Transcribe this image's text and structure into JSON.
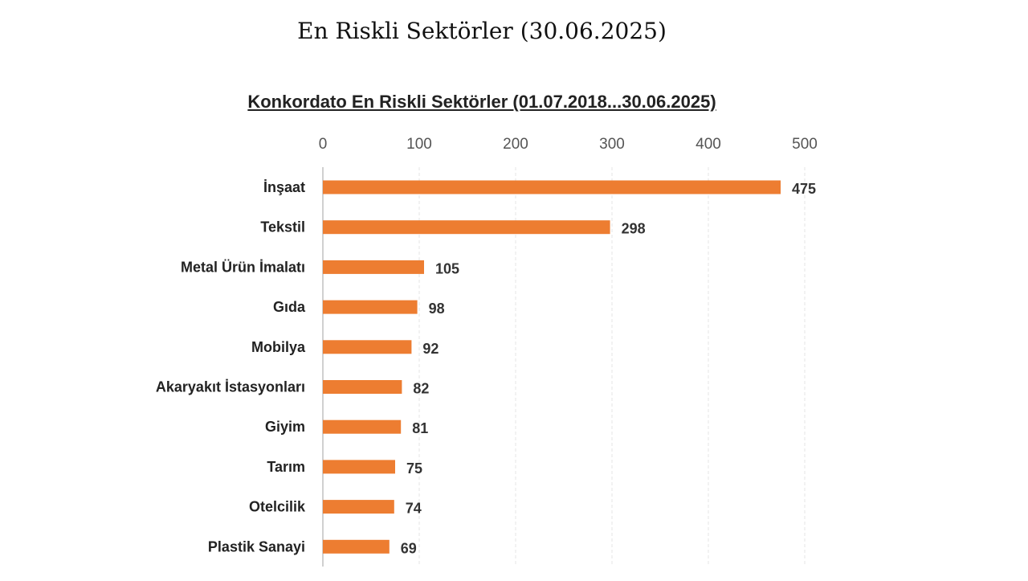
{
  "page_title": "En Riskli Sektörler (30.06.2025)",
  "colors": {
    "bar": "#ED7D31",
    "grid": "#e4e4e4",
    "axis": "#d0d0d0"
  },
  "chart_data": {
    "type": "bar",
    "orientation": "horizontal",
    "title": "Konkordato En Riskli Sektörler (01.07.2018...30.06.2025)",
    "xlabel": "",
    "ylabel": "",
    "xlim": [
      0,
      500
    ],
    "ticks": [
      0,
      100,
      200,
      300,
      400,
      500
    ],
    "tick_labels": [
      "0",
      "100",
      "200",
      "300",
      "400",
      "500"
    ],
    "axis_position": "top",
    "grid": true,
    "categories": [
      "İnşaat",
      "Tekstil",
      "Metal Ürün İmalatı",
      "Gıda",
      "Mobilya",
      "Akaryakıt İstasyonları",
      "Giyim",
      "Tarım",
      "Otelcilik",
      "Plastik Sanayi"
    ],
    "values": [
      475,
      298,
      105,
      98,
      92,
      82,
      81,
      75,
      74,
      69
    ],
    "data_labels": [
      "475",
      "298",
      "105",
      "98",
      "92",
      "82",
      "81",
      "75",
      "74",
      "69"
    ]
  }
}
